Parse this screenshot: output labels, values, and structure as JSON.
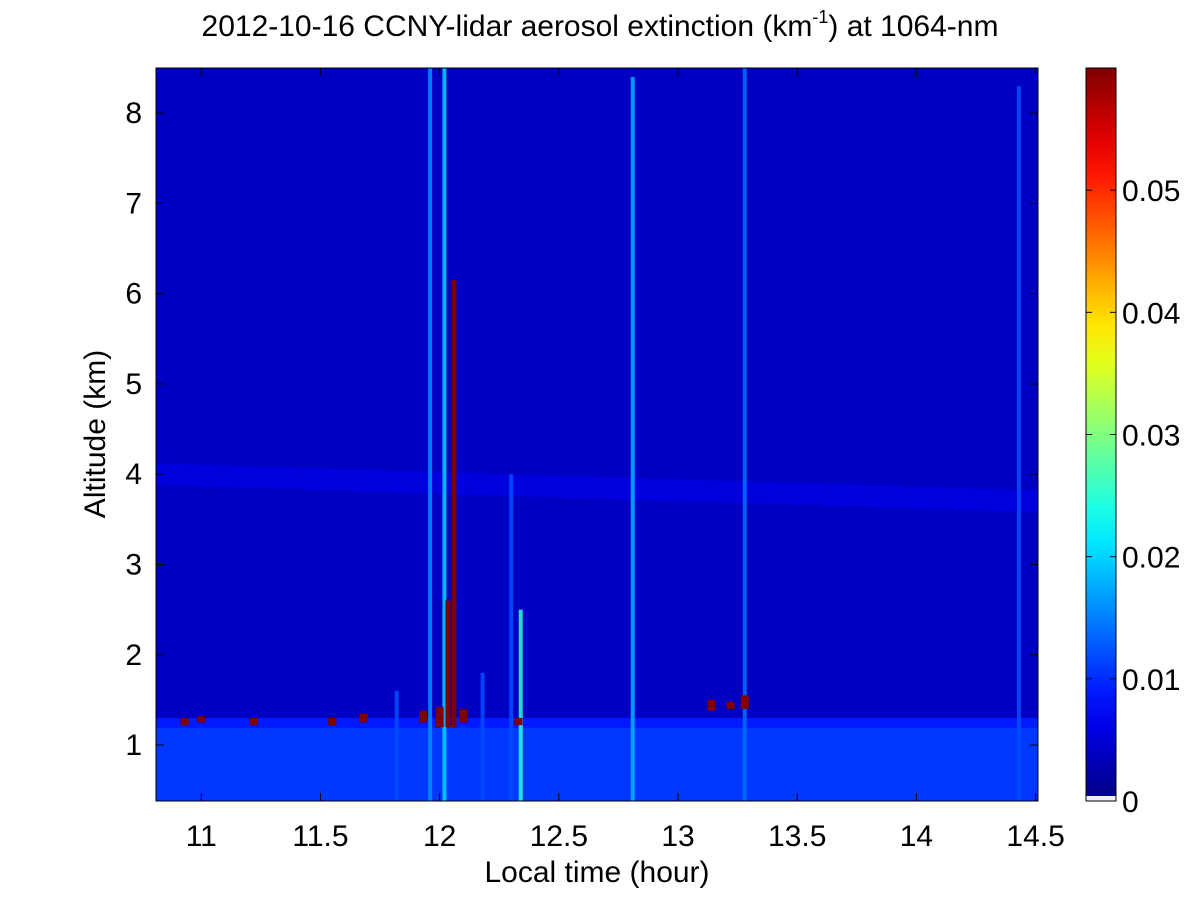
{
  "chart_data": {
    "type": "heatmap",
    "title_main": "2012-10-16 CCNY-lidar aerosol extinction (km",
    "title_sup": "-1",
    "title_tail": ") at 1064-nm",
    "xlabel": "Local time (hour)",
    "ylabel": "Altitude (km)",
    "xlim": [
      10.81,
      14.51
    ],
    "ylim": [
      0.38,
      8.5
    ],
    "x_ticks": [
      11,
      11.5,
      12,
      12.5,
      13,
      13.5,
      14,
      14.5
    ],
    "x_tick_labels": [
      "11",
      "11.5",
      "12",
      "12.5",
      "13",
      "13.5",
      "14",
      "14.5"
    ],
    "y_ticks": [
      1,
      2,
      3,
      4,
      5,
      6,
      7,
      8
    ],
    "y_tick_labels": [
      "1",
      "2",
      "3",
      "4",
      "5",
      "6",
      "7",
      "8"
    ],
    "colorbar": {
      "range": [
        0,
        0.06
      ],
      "ticks": [
        0,
        0.01,
        0.02,
        0.03,
        0.04,
        0.05
      ],
      "tick_labels": [
        "0",
        "0.01",
        "0.02",
        "0.03",
        "0.04",
        "0.05"
      ],
      "colormap": "jet"
    },
    "background_level": 0.004,
    "boundary_layer": {
      "top_altitude": 1.3,
      "level": 0.009
    },
    "elevated_layer": {
      "altitude_start": 4.0,
      "altitude_end": 3.7,
      "level": 0.006
    },
    "clouds": [
      {
        "time": 12.06,
        "altitude_bottom": 1.2,
        "altitude_top": 6.15,
        "level": 0.06
      },
      {
        "time": 12.0,
        "altitude_bottom": 1.2,
        "altitude_top": 1.42,
        "level": 0.06
      },
      {
        "time": 12.035,
        "altitude_bottom": 1.2,
        "altitude_top": 2.6,
        "level": 0.06
      },
      {
        "time": 11.93,
        "altitude_bottom": 1.25,
        "altitude_top": 1.38,
        "level": 0.06
      },
      {
        "time": 12.1,
        "altitude_bottom": 1.25,
        "altitude_top": 1.4,
        "level": 0.06
      },
      {
        "time": 12.33,
        "altitude_bottom": 1.22,
        "altitude_top": 1.3,
        "level": 0.06
      },
      {
        "time": 13.14,
        "altitude_bottom": 1.38,
        "altitude_top": 1.5,
        "level": 0.06
      },
      {
        "time": 13.28,
        "altitude_bottom": 1.4,
        "altitude_top": 1.55,
        "level": 0.06
      },
      {
        "time": 13.22,
        "altitude_bottom": 1.4,
        "altitude_top": 1.48,
        "level": 0.06
      },
      {
        "time": 10.93,
        "altitude_bottom": 1.22,
        "altitude_top": 1.3,
        "level": 0.06
      },
      {
        "time": 11.0,
        "altitude_bottom": 1.25,
        "altitude_top": 1.32,
        "level": 0.06
      },
      {
        "time": 11.22,
        "altitude_bottom": 1.22,
        "altitude_top": 1.3,
        "level": 0.06
      },
      {
        "time": 11.55,
        "altitude_bottom": 1.22,
        "altitude_top": 1.3,
        "level": 0.06
      },
      {
        "time": 11.68,
        "altitude_bottom": 1.25,
        "altitude_top": 1.35,
        "level": 0.06
      }
    ],
    "streaks": [
      {
        "time": 11.96,
        "altitude_top": 8.5,
        "level": 0.016
      },
      {
        "time": 12.02,
        "altitude_top": 8.5,
        "level": 0.02
      },
      {
        "time": 12.3,
        "altitude_top": 4.0,
        "level": 0.012
      },
      {
        "time": 12.34,
        "altitude_top": 2.5,
        "level": 0.025
      },
      {
        "time": 12.81,
        "altitude_top": 8.4,
        "level": 0.018
      },
      {
        "time": 13.28,
        "altitude_top": 8.5,
        "level": 0.014
      },
      {
        "time": 14.43,
        "altitude_top": 8.3,
        "level": 0.012
      },
      {
        "time": 11.82,
        "altitude_top": 1.6,
        "level": 0.012
      },
      {
        "time": 12.18,
        "altitude_top": 1.8,
        "level": 0.012
      }
    ]
  }
}
